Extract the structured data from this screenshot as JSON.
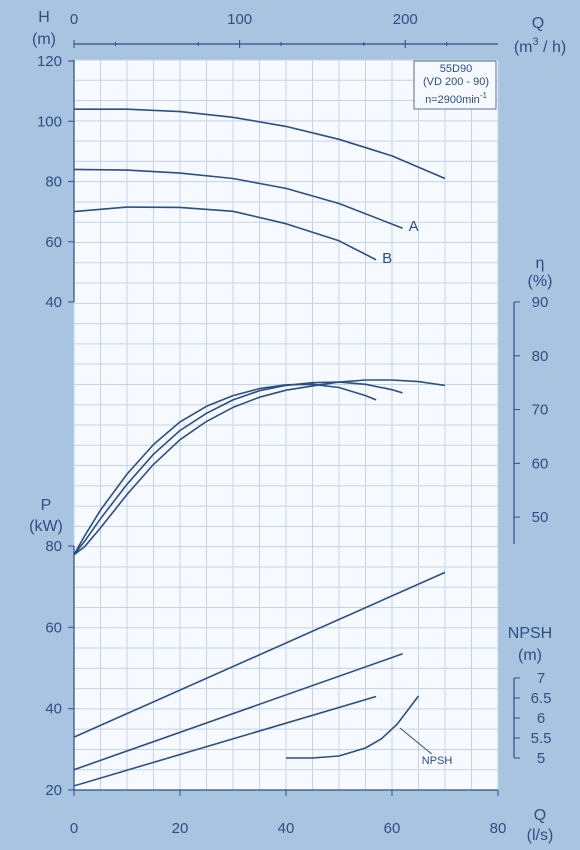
{
  "chart_data": {
    "type": "line",
    "colors": {
      "background": "#a8c4e0",
      "plot": "#f6f9fd",
      "grid": "#c2d4ea",
      "ink": "#2d4f82"
    },
    "info": {
      "model": "55D90",
      "variant": "(VD 200 - 90)",
      "speed": "n=2900min",
      "speed_exp": "-1"
    },
    "axes": {
      "flow_m3h": {
        "label": "Q",
        "unit_base": "(m",
        "unit_exp": "3",
        "unit_tail": " / h)",
        "ticks": [
          "0",
          "100",
          "200"
        ],
        "range": [
          0,
          256
        ]
      },
      "flow_ls": {
        "label": "Q",
        "unit": "(l/s)",
        "ticks": [
          "0",
          "20",
          "40",
          "60",
          "80"
        ],
        "range": [
          0,
          80
        ]
      },
      "head": {
        "label": "H",
        "unit": "(m)",
        "ticks": [
          "120",
          "100",
          "80",
          "60",
          "40"
        ],
        "range": [
          40,
          120
        ]
      },
      "efficiency": {
        "label": "η",
        "unit": "(%)",
        "ticks": [
          "90",
          "80",
          "70",
          "60",
          "50"
        ],
        "range": [
          45,
          90
        ]
      },
      "power": {
        "label": "P",
        "unit": "(kW)",
        "ticks": [
          "80",
          "60",
          "40",
          "20"
        ],
        "range": [
          20,
          80
        ]
      },
      "npsh": {
        "label": "NPSH",
        "unit": "(m)",
        "ticks": [
          "7",
          "6.5",
          "6",
          "5.5",
          "5"
        ],
        "range": [
          5,
          7
        ]
      }
    },
    "head_curves": [
      {
        "label": "",
        "x": [
          0,
          10,
          20,
          30,
          40,
          50,
          60,
          70
        ],
        "y": [
          104,
          104,
          103.2,
          101.3,
          98.3,
          94,
          88.5,
          81
        ]
      },
      {
        "label": "A",
        "x": [
          0,
          10,
          20,
          30,
          40,
          50,
          62
        ],
        "y": [
          84,
          83.8,
          82.8,
          81,
          77.7,
          72.7,
          64.5
        ]
      },
      {
        "label": "B",
        "x": [
          0,
          10,
          20,
          30,
          40,
          50,
          57
        ],
        "y": [
          70,
          71.5,
          71.4,
          70.1,
          66,
          60.3,
          54
        ]
      }
    ],
    "efficiency_curves": [
      {
        "x": [
          0,
          2,
          5,
          10,
          15,
          20,
          25,
          30,
          35,
          40,
          45,
          50,
          55,
          60,
          65,
          70
        ],
        "y": [
          43,
          44.5,
          48,
          54.2,
          59.8,
          64.4,
          67.8,
          70.4,
          72.3,
          73.6,
          74.4,
          75.1,
          75.5,
          75.5,
          75.2,
          74.5
        ]
      },
      {
        "x": [
          0,
          2,
          5,
          10,
          15,
          20,
          25,
          30,
          35,
          40,
          45,
          50,
          55,
          60,
          62
        ],
        "y": [
          43,
          45.5,
          49.7,
          56.1,
          61.7,
          66.1,
          69.3,
          71.8,
          73.5,
          74.5,
          75,
          75.1,
          74.7,
          73.7,
          73.1
        ]
      },
      {
        "x": [
          0,
          2,
          5,
          10,
          15,
          20,
          25,
          30,
          35,
          40,
          45,
          50,
          55,
          57
        ],
        "y": [
          43,
          46.5,
          51.3,
          58,
          63.5,
          67.7,
          70.6,
          72.6,
          73.9,
          74.6,
          74.7,
          74.1,
          72.6,
          71.8
        ]
      }
    ],
    "power_curves": [
      {
        "x": [
          0,
          70
        ],
        "y": [
          33,
          73.5
        ]
      },
      {
        "x": [
          0,
          62
        ],
        "y": [
          25,
          53.5
        ]
      },
      {
        "x": [
          0,
          57
        ],
        "y": [
          21,
          43
        ]
      }
    ],
    "npsh_curve": {
      "label": "NPSH",
      "x": [
        40,
        45,
        50,
        55,
        58,
        61,
        63,
        65
      ],
      "y": [
        5,
        5,
        5.05,
        5.25,
        5.48,
        5.85,
        6.2,
        6.55
      ]
    }
  }
}
